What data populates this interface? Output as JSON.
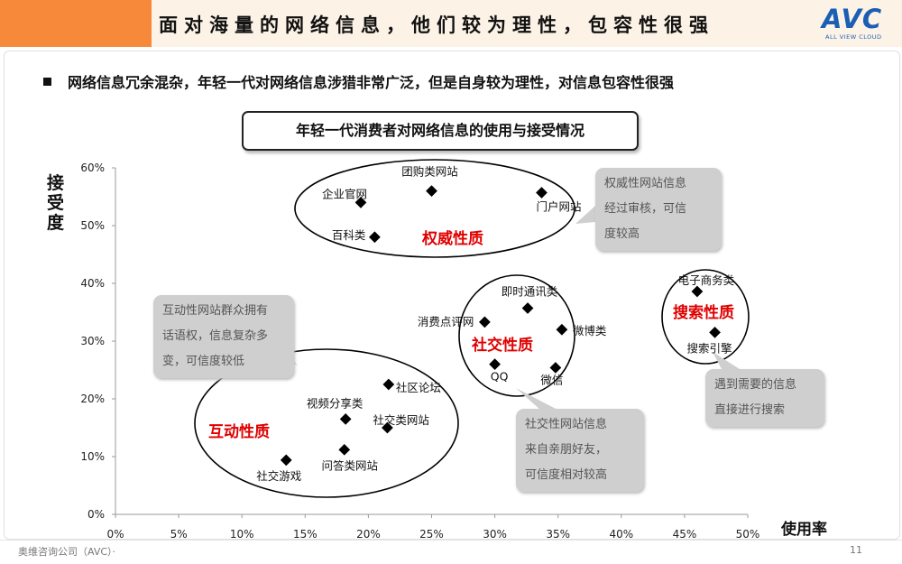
{
  "header": {
    "title": "面对海量的网络信息，他们较为理性，包容性很强",
    "logo_text": "AVC",
    "logo_sub": "ALL VIEW CLOUD"
  },
  "bullet": "网络信息冗余混杂，年轻一代对网络信息涉猎非常广泛，但是自身较为理性，对信息包容性很强",
  "chart_title": "年轻一代消费者对网络信息的使用与接受情况",
  "chart_data": {
    "type": "scatter",
    "xlabel": "使用率",
    "ylabel": "接受度",
    "xlim": [
      0,
      0.5
    ],
    "ylim": [
      0,
      0.6
    ],
    "x_ticks": [
      "0%",
      "5%",
      "10%",
      "15%",
      "20%",
      "25%",
      "30%",
      "35%",
      "40%",
      "45%",
      "50%"
    ],
    "y_ticks": [
      "0%",
      "10%",
      "20%",
      "30%",
      "40%",
      "50%",
      "60%"
    ],
    "points": [
      {
        "label": "团购类网站",
        "x": 0.25,
        "y": 0.56
      },
      {
        "label": "企业官网",
        "x": 0.194,
        "y": 0.54
      },
      {
        "label": "门户网站",
        "x": 0.337,
        "y": 0.557
      },
      {
        "label": "百科类",
        "x": 0.205,
        "y": 0.48
      },
      {
        "label": "即时通讯类",
        "x": 0.326,
        "y": 0.357
      },
      {
        "label": "消费点评网",
        "x": 0.292,
        "y": 0.333
      },
      {
        "label": "微博类",
        "x": 0.353,
        "y": 0.32
      },
      {
        "label": "QQ",
        "x": 0.3,
        "y": 0.26
      },
      {
        "label": "微信",
        "x": 0.348,
        "y": 0.254
      },
      {
        "label": "电子商务类",
        "x": 0.46,
        "y": 0.386
      },
      {
        "label": "搜索引擎",
        "x": 0.474,
        "y": 0.315
      },
      {
        "label": "社区论坛",
        "x": 0.216,
        "y": 0.225
      },
      {
        "label": "视频分享类",
        "x": 0.182,
        "y": 0.165
      },
      {
        "label": "社交类网站",
        "x": 0.215,
        "y": 0.15
      },
      {
        "label": "问答类网站",
        "x": 0.181,
        "y": 0.112
      },
      {
        "label": "社交游戏",
        "x": 0.135,
        "y": 0.094
      }
    ],
    "groups": [
      "权威性质",
      "社交性质",
      "搜索性质",
      "互动性质"
    ],
    "callouts": [
      [
        "权威性网站信息",
        "经过审核，可信",
        "度较高"
      ],
      [
        "互动性网站群众拥有",
        "话语权，信息复杂多",
        "变，可信度较低"
      ],
      [
        "社交性网站信息",
        "来自亲朋好友，",
        "可信度相对较高"
      ],
      [
        "遇到需要的信息",
        "直接进行搜索"
      ]
    ],
    "colors": {
      "group_label": "#e00000",
      "marker": "#000000",
      "callout_bg": "#cfcfcf"
    }
  },
  "footer": {
    "left": "奥维咨询公司（AVC）·",
    "page": "11"
  }
}
